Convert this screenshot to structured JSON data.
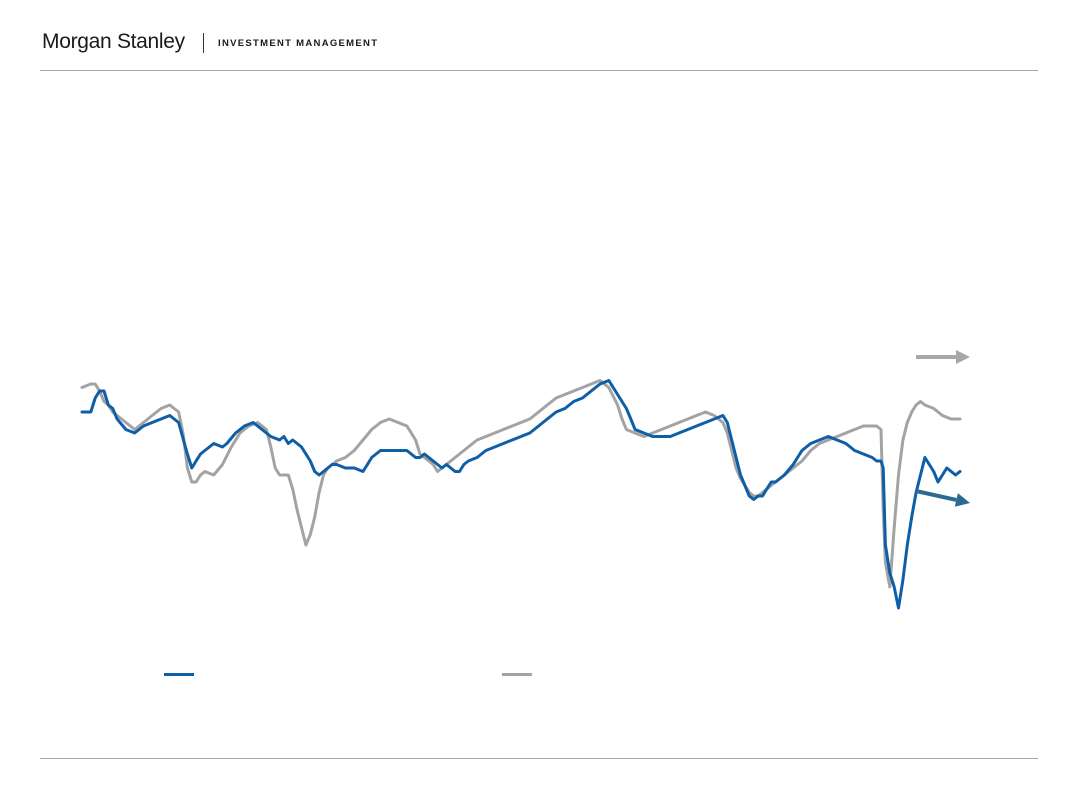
{
  "header": {
    "brand_name": "Morgan Stanley",
    "division": "INVESTMENT MANAGEMENT"
  },
  "colors": {
    "series_1": "#0e5ea8",
    "series_2": "#a3a3a3",
    "arrow_1": "#2b6a93",
    "arrow_2": "#a8a8a8",
    "rule": "#a8a8a8"
  },
  "chart_data": {
    "type": "line",
    "title": "",
    "xlabel": "",
    "ylabel": "",
    "grid": false,
    "legend": "bottom",
    "x_range": [
      0,
      200
    ],
    "ylim": [
      0,
      100
    ],
    "series": [
      {
        "points": [
          [
            0,
            68
          ],
          [
            2,
            68
          ],
          [
            3,
            72
          ],
          [
            4,
            74
          ],
          [
            5,
            74
          ],
          [
            6,
            70
          ],
          [
            7,
            69
          ],
          [
            8,
            66
          ],
          [
            10,
            63
          ],
          [
            12,
            62
          ],
          [
            14,
            64
          ],
          [
            16,
            65
          ],
          [
            18,
            66
          ],
          [
            20,
            67
          ],
          [
            22,
            65
          ],
          [
            24,
            56
          ],
          [
            25,
            52
          ],
          [
            26,
            54
          ],
          [
            27,
            56
          ],
          [
            28,
            57
          ],
          [
            30,
            59
          ],
          [
            32,
            58
          ],
          [
            33,
            59
          ],
          [
            35,
            62
          ],
          [
            37,
            64
          ],
          [
            39,
            65
          ],
          [
            41,
            63
          ],
          [
            43,
            61
          ],
          [
            45,
            60
          ],
          [
            46,
            61
          ],
          [
            47,
            59
          ],
          [
            48,
            60
          ],
          [
            49,
            59
          ],
          [
            50,
            58
          ],
          [
            51,
            56
          ],
          [
            52,
            54
          ],
          [
            53,
            51
          ],
          [
            54,
            50
          ],
          [
            55,
            51
          ],
          [
            56,
            52
          ],
          [
            57,
            53
          ],
          [
            58,
            53
          ],
          [
            60,
            52
          ],
          [
            62,
            52
          ],
          [
            64,
            51
          ],
          [
            65,
            53
          ],
          [
            66,
            55
          ],
          [
            67,
            56
          ],
          [
            68,
            57
          ],
          [
            70,
            57
          ],
          [
            72,
            57
          ],
          [
            74,
            57
          ],
          [
            76,
            55
          ],
          [
            77,
            55
          ],
          [
            78,
            56
          ],
          [
            79,
            55
          ],
          [
            80,
            54
          ],
          [
            81,
            53
          ],
          [
            82,
            52
          ],
          [
            83,
            53
          ],
          [
            84,
            52
          ],
          [
            85,
            51
          ],
          [
            86,
            51
          ],
          [
            87,
            53
          ],
          [
            88,
            54
          ],
          [
            90,
            55
          ],
          [
            92,
            57
          ],
          [
            94,
            58
          ],
          [
            96,
            59
          ],
          [
            98,
            60
          ],
          [
            100,
            61
          ],
          [
            102,
            62
          ],
          [
            104,
            64
          ],
          [
            106,
            66
          ],
          [
            108,
            68
          ],
          [
            110,
            69
          ],
          [
            112,
            71
          ],
          [
            114,
            72
          ],
          [
            116,
            74
          ],
          [
            118,
            76
          ],
          [
            120,
            77
          ],
          [
            122,
            73
          ],
          [
            124,
            69
          ],
          [
            125,
            66
          ],
          [
            126,
            63
          ],
          [
            128,
            62
          ],
          [
            130,
            61
          ],
          [
            132,
            61
          ],
          [
            134,
            61
          ],
          [
            136,
            62
          ],
          [
            138,
            63
          ],
          [
            140,
            64
          ],
          [
            142,
            65
          ],
          [
            144,
            66
          ],
          [
            146,
            67
          ],
          [
            147,
            65
          ],
          [
            148,
            60
          ],
          [
            149,
            55
          ],
          [
            150,
            50
          ],
          [
            151,
            47
          ],
          [
            152,
            44
          ],
          [
            153,
            43
          ],
          [
            154,
            44
          ],
          [
            155,
            44
          ],
          [
            156,
            46
          ],
          [
            157,
            48
          ],
          [
            158,
            48
          ],
          [
            159,
            49
          ],
          [
            160,
            50
          ],
          [
            162,
            53
          ],
          [
            164,
            57
          ],
          [
            166,
            59
          ],
          [
            168,
            60
          ],
          [
            170,
            61
          ],
          [
            172,
            60
          ],
          [
            174,
            59
          ],
          [
            176,
            57
          ],
          [
            178,
            56
          ],
          [
            180,
            55
          ],
          [
            181,
            54
          ],
          [
            182,
            54
          ],
          [
            182.5,
            52
          ],
          [
            183,
            30
          ],
          [
            184,
            22
          ],
          [
            185,
            18
          ],
          [
            186,
            12
          ],
          [
            187,
            20
          ],
          [
            188,
            30
          ],
          [
            189,
            38
          ],
          [
            190,
            45
          ],
          [
            191,
            50
          ],
          [
            192,
            55
          ],
          [
            193,
            53
          ],
          [
            194,
            51
          ],
          [
            195,
            48
          ],
          [
            196,
            50
          ],
          [
            197,
            52
          ],
          [
            198,
            51
          ],
          [
            199,
            50
          ],
          [
            200,
            51
          ]
        ],
        "arrow": "down-right"
      },
      {
        "points": [
          [
            0,
            75
          ],
          [
            2,
            76
          ],
          [
            3,
            76
          ],
          [
            4,
            74
          ],
          [
            5,
            71
          ],
          [
            6,
            70
          ],
          [
            7,
            68
          ],
          [
            8,
            67
          ],
          [
            10,
            65
          ],
          [
            12,
            63
          ],
          [
            14,
            65
          ],
          [
            16,
            67
          ],
          [
            18,
            69
          ],
          [
            20,
            70
          ],
          [
            22,
            68
          ],
          [
            23,
            62
          ],
          [
            24,
            52
          ],
          [
            25,
            48
          ],
          [
            26,
            48
          ],
          [
            27,
            50
          ],
          [
            28,
            51
          ],
          [
            30,
            50
          ],
          [
            32,
            53
          ],
          [
            34,
            58
          ],
          [
            36,
            62
          ],
          [
            38,
            64
          ],
          [
            40,
            65
          ],
          [
            42,
            63
          ],
          [
            43,
            58
          ],
          [
            44,
            52
          ],
          [
            45,
            50
          ],
          [
            46,
            50
          ],
          [
            47,
            50
          ],
          [
            48,
            46
          ],
          [
            49,
            40
          ],
          [
            50,
            35
          ],
          [
            51,
            30
          ],
          [
            52,
            33
          ],
          [
            53,
            38
          ],
          [
            54,
            45
          ],
          [
            55,
            50
          ],
          [
            56,
            52
          ],
          [
            58,
            54
          ],
          [
            60,
            55
          ],
          [
            62,
            57
          ],
          [
            64,
            60
          ],
          [
            66,
            63
          ],
          [
            68,
            65
          ],
          [
            70,
            66
          ],
          [
            72,
            65
          ],
          [
            74,
            64
          ],
          [
            76,
            60
          ],
          [
            77,
            56
          ],
          [
            78,
            55
          ],
          [
            79,
            54
          ],
          [
            80,
            53
          ],
          [
            81,
            51
          ],
          [
            82,
            52
          ],
          [
            83,
            53
          ],
          [
            84,
            54
          ],
          [
            85,
            55
          ],
          [
            86,
            56
          ],
          [
            88,
            58
          ],
          [
            90,
            60
          ],
          [
            92,
            61
          ],
          [
            94,
            62
          ],
          [
            96,
            63
          ],
          [
            98,
            64
          ],
          [
            100,
            65
          ],
          [
            102,
            66
          ],
          [
            104,
            68
          ],
          [
            106,
            70
          ],
          [
            108,
            72
          ],
          [
            110,
            73
          ],
          [
            112,
            74
          ],
          [
            114,
            75
          ],
          [
            116,
            76
          ],
          [
            118,
            77
          ],
          [
            120,
            75
          ],
          [
            122,
            70
          ],
          [
            123,
            66
          ],
          [
            124,
            63
          ],
          [
            126,
            62
          ],
          [
            128,
            61
          ],
          [
            130,
            62
          ],
          [
            132,
            63
          ],
          [
            134,
            64
          ],
          [
            136,
            65
          ],
          [
            138,
            66
          ],
          [
            140,
            67
          ],
          [
            142,
            68
          ],
          [
            144,
            67
          ],
          [
            146,
            65
          ],
          [
            147,
            62
          ],
          [
            148,
            57
          ],
          [
            149,
            52
          ],
          [
            150,
            49
          ],
          [
            151,
            47
          ],
          [
            152,
            45
          ],
          [
            153,
            44
          ],
          [
            154,
            44
          ],
          [
            156,
            46
          ],
          [
            158,
            48
          ],
          [
            160,
            50
          ],
          [
            162,
            52
          ],
          [
            164,
            54
          ],
          [
            166,
            57
          ],
          [
            168,
            59
          ],
          [
            170,
            60
          ],
          [
            172,
            61
          ],
          [
            174,
            62
          ],
          [
            176,
            63
          ],
          [
            178,
            64
          ],
          [
            180,
            64
          ],
          [
            181,
            64
          ],
          [
            182,
            63
          ],
          [
            182.5,
            40
          ],
          [
            183,
            25
          ],
          [
            184,
            18
          ],
          [
            185,
            35
          ],
          [
            186,
            50
          ],
          [
            187,
            60
          ],
          [
            188,
            65
          ],
          [
            189,
            68
          ],
          [
            190,
            70
          ],
          [
            191,
            71
          ],
          [
            192,
            70
          ],
          [
            194,
            69
          ],
          [
            196,
            67
          ],
          [
            198,
            66
          ],
          [
            200,
            66
          ]
        ],
        "arrow": "right"
      }
    ]
  }
}
